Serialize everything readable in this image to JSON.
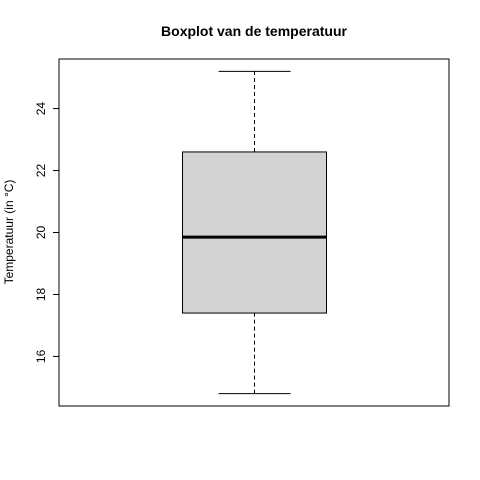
{
  "chart_data": {
    "type": "boxplot",
    "title": "Boxplot van de temperatuur",
    "xlabel": "",
    "ylabel": "Temperatuur (in °C)",
    "ylim": [
      14.4,
      25.6
    ],
    "yticks": [
      16,
      18,
      20,
      22,
      24
    ],
    "ytick_labels": [
      "16",
      "18",
      "20",
      "22",
      "24"
    ],
    "box": {
      "whisker_low": 14.8,
      "q1": 17.4,
      "median": 19.85,
      "q3": 22.6,
      "whisker_high": 25.2
    },
    "box_fill": "#d3d3d3",
    "grid": false,
    "legend": "none"
  }
}
